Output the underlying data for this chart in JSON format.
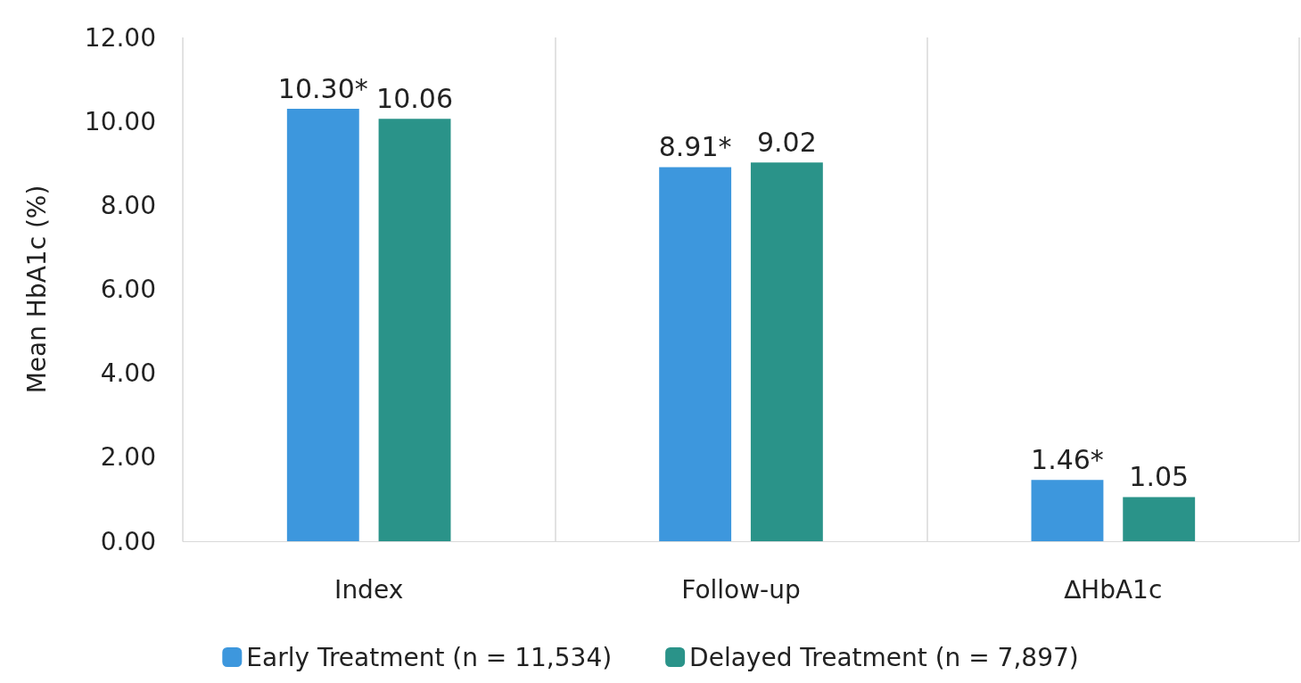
{
  "chart_data": {
    "type": "bar",
    "ylabel": "Mean HbA1c (%)",
    "categories": [
      "Index",
      "Follow-up",
      "∆HbA1c"
    ],
    "series": [
      {
        "name": "Early Treatment (n = 11,534)",
        "color": "#3d97dd",
        "values": [
          10.3,
          8.91,
          1.46
        ],
        "value_labels": [
          "10.30*",
          "8.91*",
          "1.46*"
        ]
      },
      {
        "name": "Delayed Treatment (n = 7,897)",
        "color": "#2a9389",
        "values": [
          10.06,
          9.02,
          1.05
        ],
        "value_labels": [
          "10.06",
          "9.02",
          "1.05"
        ]
      }
    ],
    "ylim": [
      0,
      12
    ],
    "yticks": [
      {
        "value": 0,
        "label": "0.00"
      },
      {
        "value": 2,
        "label": "2.00"
      },
      {
        "value": 4,
        "label": "4.00"
      },
      {
        "value": 6,
        "label": "6.00"
      },
      {
        "value": 8,
        "label": "8.00"
      },
      {
        "value": 10,
        "label": "10.00"
      },
      {
        "value": 12,
        "label": "12.00"
      }
    ],
    "grid": "x",
    "legend": "bottom"
  }
}
